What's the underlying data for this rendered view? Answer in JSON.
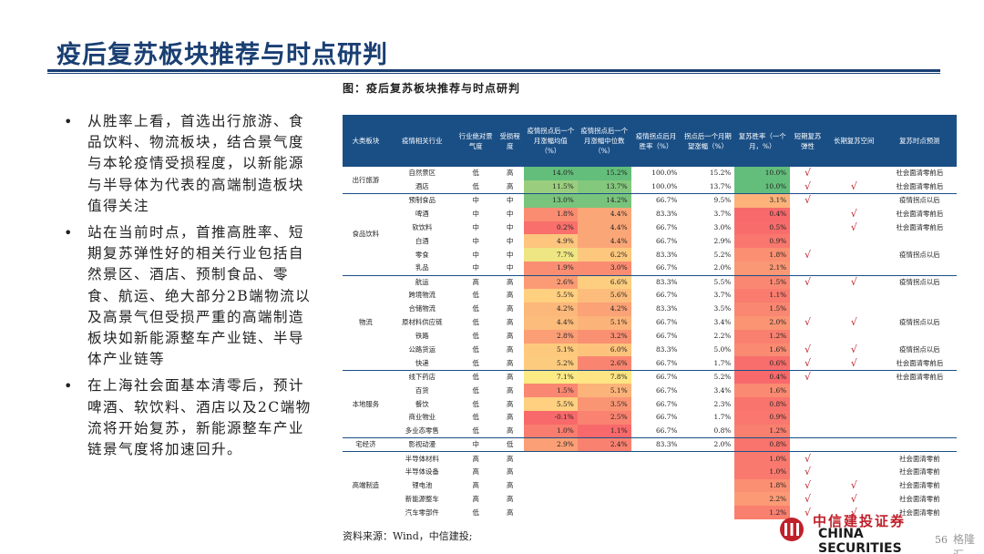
{
  "page": {
    "title": "疫后复苏板块推荐与时点研判",
    "bullets": [
      "从胜率上看，首选出行旅游、食品饮料、物流板块，结合景气度与本轮疫情受损程度，以新能源与半导体为代表的高端制造板块值得关注",
      "站在当前时点，首推高胜率、短期复苏弹性好的相关行业包括自然景区、酒店、预制食品、零食、航运、绝大部分2B端物流以及高景气但受损严重的高端制造板块如新能源整车产业链、半导体产业链等",
      "在上海社会面基本清零后，预计啤酒、软饮料、酒店以及2C端物流将开始复苏，新能源整车产业链景气度将加速回升。"
    ],
    "bullet_symbol": "•",
    "figure_title": "图：疫后复苏板块推荐与时点研判",
    "source": "资料来源：Wind，中信建投;",
    "page_number": "56",
    "logo_text": "CHINA SECURITIES",
    "logo_cn": "中信建投证券",
    "watermark": "格隆汇"
  },
  "table": {
    "headers": [
      "大类板块",
      "疫情相关行业",
      "行业绝对景气度",
      "受损程度",
      "疫情拐点后一个月涨幅均值（%）",
      "疫情拐点后一个月涨幅中位数（%）",
      "疫情拐点后月胜率（%）",
      "拐点后一个月期望涨幅（%）",
      "复苏胜率（一个月，%）",
      "短期复苏弹性",
      "长期复苏空间",
      "复苏时点预测"
    ],
    "check_mark": "√",
    "groups": [
      {
        "name": "出行旅游",
        "rows": [
          {
            "industry": "自然景区",
            "boom": "低",
            "damage": "高",
            "mean": "14.0%",
            "median": "15.2%",
            "winrate": "100.0%",
            "expect": "15.2%",
            "recovery": "10.0%",
            "short": true,
            "long": false,
            "timing": "社会面清零前后"
          },
          {
            "industry": "酒店",
            "boom": "低",
            "damage": "高",
            "mean": "11.5%",
            "median": "13.7%",
            "winrate": "100.0%",
            "expect": "13.7%",
            "recovery": "10.0%",
            "short": true,
            "long": true,
            "timing": "社会面清零前后"
          }
        ]
      },
      {
        "name": "食品饮料",
        "rows": [
          {
            "industry": "预制食品",
            "boom": "中",
            "damage": "中",
            "mean": "13.0%",
            "median": "14.2%",
            "winrate": "66.7%",
            "expect": "9.5%",
            "recovery": "3.1%",
            "short": true,
            "long": false,
            "timing": "疫情拐点以后"
          },
          {
            "industry": "啤酒",
            "boom": "中",
            "damage": "中",
            "mean": "1.8%",
            "median": "4.4%",
            "winrate": "83.3%",
            "expect": "3.7%",
            "recovery": "0.4%",
            "short": false,
            "long": true,
            "timing": "社会面清零前后"
          },
          {
            "industry": "软饮料",
            "boom": "中",
            "damage": "中",
            "mean": "0.2%",
            "median": "4.4%",
            "winrate": "66.7%",
            "expect": "3.0%",
            "recovery": "0.5%",
            "short": false,
            "long": true,
            "timing": "社会面清零前后"
          },
          {
            "industry": "白酒",
            "boom": "中",
            "damage": "中",
            "mean": "4.9%",
            "median": "4.4%",
            "winrate": "66.7%",
            "expect": "2.9%",
            "recovery": "0.9%",
            "short": false,
            "long": false,
            "timing": ""
          },
          {
            "industry": "零食",
            "boom": "中",
            "damage": "中",
            "mean": "7.7%",
            "median": "6.2%",
            "winrate": "83.3%",
            "expect": "5.2%",
            "recovery": "1.8%",
            "short": true,
            "long": false,
            "timing": "疫情拐点以后"
          },
          {
            "industry": "乳品",
            "boom": "中",
            "damage": "中",
            "mean": "1.9%",
            "median": "3.0%",
            "winrate": "66.7%",
            "expect": "2.0%",
            "recovery": "2.1%",
            "short": false,
            "long": false,
            "timing": ""
          }
        ]
      },
      {
        "name": "物流",
        "rows": [
          {
            "industry": "航运",
            "boom": "高",
            "damage": "高",
            "mean": "2.6%",
            "median": "6.6%",
            "winrate": "83.3%",
            "expect": "5.5%",
            "recovery": "1.5%",
            "short": true,
            "long": true,
            "timing": "疫情拐点以后"
          },
          {
            "industry": "跨境物流",
            "boom": "低",
            "damage": "高",
            "mean": "5.5%",
            "median": "5.6%",
            "winrate": "66.7%",
            "expect": "3.7%",
            "recovery": "1.1%",
            "short": false,
            "long": false,
            "timing": ""
          },
          {
            "industry": "合储物流",
            "boom": "低",
            "damage": "高",
            "mean": "4.2%",
            "median": "4.2%",
            "winrate": "83.3%",
            "expect": "3.5%",
            "recovery": "1.5%",
            "short": false,
            "long": false,
            "timing": ""
          },
          {
            "industry": "原材料供应链",
            "boom": "低",
            "damage": "高",
            "mean": "4.4%",
            "median": "5.1%",
            "winrate": "66.7%",
            "expect": "3.4%",
            "recovery": "2.0%",
            "short": true,
            "long": true,
            "timing": "疫情拐点以后"
          },
          {
            "industry": "铁路",
            "boom": "低",
            "damage": "高",
            "mean": "2.8%",
            "median": "3.2%",
            "winrate": "66.7%",
            "expect": "2.2%",
            "recovery": "1.2%",
            "short": false,
            "long": false,
            "timing": ""
          },
          {
            "industry": "公路货运",
            "boom": "低",
            "damage": "高",
            "mean": "5.1%",
            "median": "6.0%",
            "winrate": "83.3%",
            "expect": "5.0%",
            "recovery": "1.6%",
            "short": true,
            "long": true,
            "timing": "疫情拐点以后"
          },
          {
            "industry": "快递",
            "boom": "低",
            "damage": "高",
            "mean": "5.2%",
            "median": "2.6%",
            "winrate": "66.7%",
            "expect": "1.7%",
            "recovery": "0.6%",
            "short": true,
            "long": true,
            "timing": "社会面清零前后"
          }
        ]
      },
      {
        "name": "本地服务",
        "rows": [
          {
            "industry": "线下药店",
            "boom": "低",
            "damage": "高",
            "mean": "7.1%",
            "median": "7.8%",
            "winrate": "66.7%",
            "expect": "5.2%",
            "recovery": "0.4%",
            "short": true,
            "long": false,
            "timing": "社会面清零前后"
          },
          {
            "industry": "百货",
            "boom": "低",
            "damage": "高",
            "mean": "1.5%",
            "median": "5.1%",
            "winrate": "66.7%",
            "expect": "3.4%",
            "recovery": "1.6%",
            "short": false,
            "long": false,
            "timing": ""
          },
          {
            "industry": "餐饮",
            "boom": "低",
            "damage": "高",
            "mean": "5.5%",
            "median": "3.5%",
            "winrate": "66.7%",
            "expect": "2.3%",
            "recovery": "0.8%",
            "short": false,
            "long": false,
            "timing": ""
          },
          {
            "industry": "商业物业",
            "boom": "低",
            "damage": "高",
            "mean": "-0.1%",
            "median": "2.5%",
            "winrate": "66.7%",
            "expect": "1.7%",
            "recovery": "0.9%",
            "short": false,
            "long": false,
            "timing": ""
          },
          {
            "industry": "多业态零售",
            "boom": "低",
            "damage": "高",
            "mean": "1.0%",
            "median": "1.1%",
            "winrate": "66.7%",
            "expect": "0.8%",
            "recovery": "1.2%",
            "short": false,
            "long": false,
            "timing": ""
          }
        ]
      },
      {
        "name": "宅经济",
        "rows": [
          {
            "industry": "影视动漫",
            "boom": "中",
            "damage": "低",
            "mean": "2.9%",
            "median": "2.4%",
            "winrate": "83.3%",
            "expect": "2.0%",
            "recovery": "0.8%",
            "short": false,
            "long": false,
            "timing": ""
          }
        ]
      },
      {
        "name": "高端制造",
        "rows": [
          {
            "industry": "半导体材料",
            "boom": "高",
            "damage": "高",
            "mean": "",
            "median": "",
            "winrate": "",
            "expect": "",
            "recovery": "1.0%",
            "short": true,
            "long": false,
            "timing": "社会面清零前"
          },
          {
            "industry": "半导体设备",
            "boom": "高",
            "damage": "高",
            "mean": "",
            "median": "",
            "winrate": "",
            "expect": "",
            "recovery": "1.0%",
            "short": true,
            "long": false,
            "timing": "社会面清零前"
          },
          {
            "industry": "锂电池",
            "boom": "高",
            "damage": "高",
            "mean": "",
            "median": "",
            "winrate": "",
            "expect": "",
            "recovery": "1.8%",
            "short": true,
            "long": true,
            "timing": "社会面清零前"
          },
          {
            "industry": "新能源整车",
            "boom": "高",
            "damage": "高",
            "mean": "",
            "median": "",
            "winrate": "",
            "expect": "",
            "recovery": "2.2%",
            "short": true,
            "long": true,
            "timing": "社会面清零前"
          },
          {
            "industry": "汽车零部件",
            "boom": "低",
            "damage": "高",
            "mean": "",
            "median": "",
            "winrate": "",
            "expect": "",
            "recovery": "1.2%",
            "short": true,
            "long": true,
            "timing": "社会面清零前"
          }
        ]
      }
    ]
  },
  "colors": {
    "title": "#1a3f73",
    "header_bg": "#1a4f86",
    "check": "#c0202a",
    "heat_high": "#63be7b",
    "heat_mid": "#ffeb84",
    "heat_low": "#f8696b"
  }
}
